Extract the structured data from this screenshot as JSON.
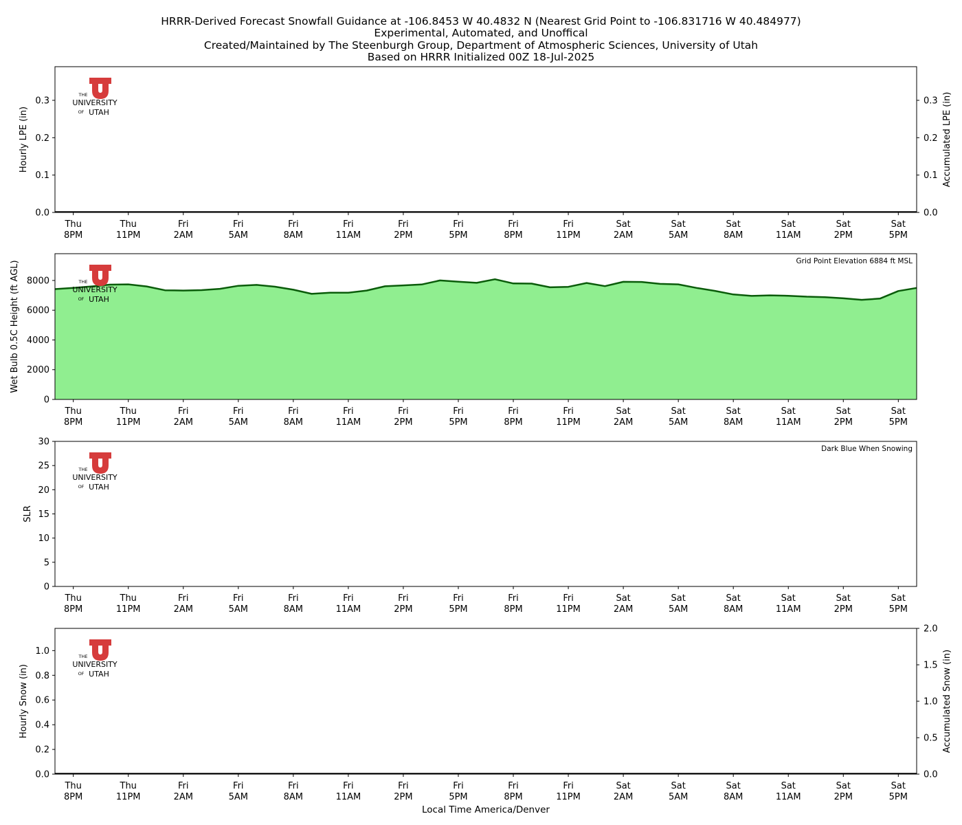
{
  "title_lines": [
    "HRRR-Derived Forecast Snowfall Guidance at -106.8453 W 40.4832 N (Nearest Grid Point to -106.831716 W 40.484977)",
    "Experimental, Automated, and Unoffical",
    "Created/Maintained by The Steenburgh Group, Department of Atmospheric Sciences, University of Utah",
    "Based on HRRR Initialized 00Z 18-Jul-2025"
  ],
  "logo": {
    "text_the": "THE",
    "text_university": "UNIVERSITY",
    "text_of": "OF",
    "text_utah": "UTAH",
    "color": "#d63c3c"
  },
  "x_axis": {
    "label": "Local Time America/Denver",
    "tick_hours": [
      0,
      3,
      6,
      9,
      12,
      15,
      18,
      21,
      24,
      27,
      30,
      33,
      36,
      39,
      42,
      45
    ],
    "tick_labels": [
      [
        "Thu",
        "8PM"
      ],
      [
        "Thu",
        "11PM"
      ],
      [
        "Fri",
        "2AM"
      ],
      [
        "Fri",
        "5AM"
      ],
      [
        "Fri",
        "8AM"
      ],
      [
        "Fri",
        "11AM"
      ],
      [
        "Fri",
        "2PM"
      ],
      [
        "Fri",
        "5PM"
      ],
      [
        "Fri",
        "8PM"
      ],
      [
        "Fri",
        "11PM"
      ],
      [
        "Sat",
        "2AM"
      ],
      [
        "Sat",
        "5AM"
      ],
      [
        "Sat",
        "8AM"
      ],
      [
        "Sat",
        "11AM"
      ],
      [
        "Sat",
        "2PM"
      ],
      [
        "Sat",
        "5PM"
      ]
    ],
    "xlim_hours": [
      -1,
      46
    ]
  },
  "chart_data": [
    {
      "type": "bar",
      "ylabel": "Hourly LPE (in)",
      "y2label": "Accumulated LPE (in)",
      "ylim": [
        0,
        0.39
      ],
      "yticks": [
        "0.0",
        "0.1",
        "0.2",
        "0.3"
      ],
      "y2lim": [
        0,
        0.39
      ],
      "y2ticks": [
        "0.0",
        "0.1",
        "0.2",
        "0.3"
      ],
      "values": [],
      "accumulated_zero_line": true
    },
    {
      "type": "area",
      "ylabel": "Wet Bulb 0.5C Height (ft AGL)",
      "annotation": "Grid Point Elevation 6884 ft MSL",
      "ylim": [
        0,
        9800
      ],
      "yticks": [
        "0",
        "2000",
        "4000",
        "6000",
        "8000"
      ],
      "fill_color": "#90ee90",
      "line_color": "#0a5c0a",
      "x": [
        -1,
        0,
        1,
        2,
        3,
        4,
        5,
        6,
        7,
        8,
        9,
        10,
        11,
        12,
        13,
        14,
        15,
        16,
        17,
        18,
        19,
        20,
        21,
        22,
        23,
        24,
        25,
        26,
        27,
        28,
        29,
        30,
        31,
        32,
        33,
        34,
        35,
        36,
        37,
        38,
        39,
        40,
        41,
        42,
        43,
        44,
        45,
        46
      ],
      "values": [
        7420,
        7500,
        7600,
        7720,
        7740,
        7600,
        7340,
        7320,
        7350,
        7440,
        7640,
        7700,
        7580,
        7380,
        7100,
        7180,
        7180,
        7320,
        7610,
        7670,
        7730,
        8000,
        7920,
        7840,
        8080,
        7800,
        7790,
        7540,
        7570,
        7830,
        7620,
        7910,
        7900,
        7770,
        7740,
        7500,
        7300,
        7060,
        6960,
        7000,
        6970,
        6910,
        6880,
        6800,
        6700,
        6780,
        7290,
        7500
      ]
    },
    {
      "type": "line",
      "ylabel": "SLR",
      "annotation": "Dark Blue When Snowing",
      "ylim": [
        0,
        30
      ],
      "yticks": [
        "0",
        "5",
        "10",
        "15",
        "20",
        "25",
        "30"
      ],
      "values": []
    },
    {
      "type": "bar",
      "ylabel": "Hourly Snow (in)",
      "y2label": "Accumulated Snow (in)",
      "ylim": [
        0,
        1.18
      ],
      "yticks": [
        "0.0",
        "0.2",
        "0.4",
        "0.6",
        "0.8",
        "1.0"
      ],
      "y2lim": [
        0,
        2.0
      ],
      "y2ticks": [
        "0.0",
        "0.5",
        "1.0",
        "1.5",
        "2.0"
      ],
      "values": [],
      "accumulated_zero_line": true
    }
  ]
}
